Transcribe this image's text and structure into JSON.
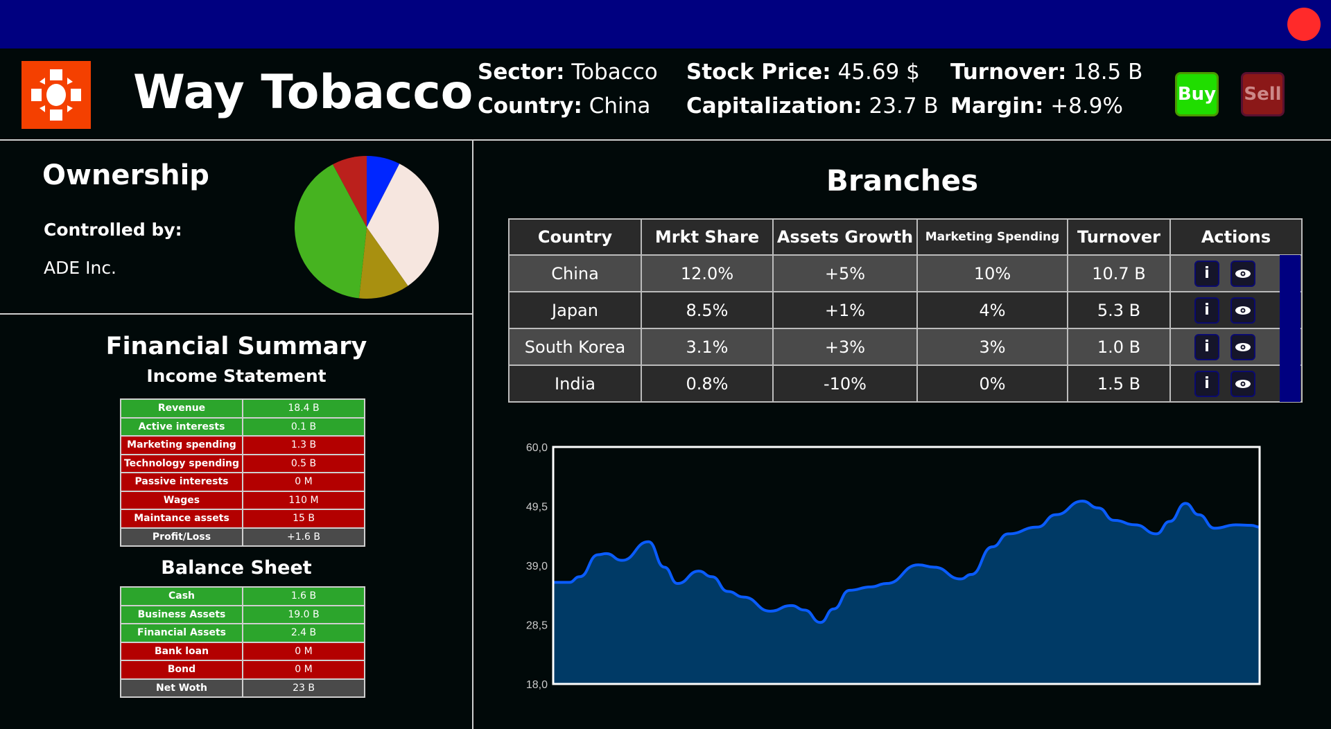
{
  "window": {
    "close_color": "#ff2a2a",
    "titlebar_color": "#000080"
  },
  "header": {
    "logo_icon": "gear-sun-icon",
    "company": "Way Tobacco",
    "stats": [
      {
        "label": "Sector:",
        "value": "Tobacco"
      },
      {
        "label": "Country:",
        "value": "China"
      },
      {
        "label": "Stock Price:",
        "value": "45.69 $"
      },
      {
        "label": "Capitalization:",
        "value": "23.7 B"
      },
      {
        "label": "Turnover:",
        "value": "18.5 B"
      },
      {
        "label": "Margin:",
        "value": "+8.9%"
      }
    ],
    "buy_label": "Buy",
    "sell_label": "Sell"
  },
  "ownership": {
    "title": "Ownership",
    "controlled_label": "Controlled by:",
    "controller": "ADE Inc.",
    "chart_data_ref": "pie"
  },
  "financial": {
    "title": "Financial Summary",
    "income_title": "Income Statement",
    "income": [
      {
        "label": "Revenue",
        "value": "18.4 B",
        "kind": "g"
      },
      {
        "label": "Active interests",
        "value": "0.1 B",
        "kind": "g"
      },
      {
        "label": "Marketing spending",
        "value": "1.3 B",
        "kind": "r"
      },
      {
        "label": "Technology spending",
        "value": "0.5 B",
        "kind": "r"
      },
      {
        "label": "Passive interests",
        "value": "0 M",
        "kind": "r"
      },
      {
        "label": "Wages",
        "value": "110 M",
        "kind": "r"
      },
      {
        "label": "Maintance assets",
        "value": "15 B",
        "kind": "r"
      },
      {
        "label": "Profit/Loss",
        "value": "+1.6 B",
        "kind": "k"
      }
    ],
    "balance_title": "Balance Sheet",
    "balance": [
      {
        "label": "Cash",
        "value": "1.6 B",
        "kind": "g"
      },
      {
        "label": "Business Assets",
        "value": "19.0 B",
        "kind": "g"
      },
      {
        "label": "Financial Assets",
        "value": "2.4 B",
        "kind": "g"
      },
      {
        "label": "Bank loan",
        "value": "0 M",
        "kind": "r"
      },
      {
        "label": "Bond",
        "value": "0 M",
        "kind": "r"
      },
      {
        "label": "Net Woth",
        "value": "23 B",
        "kind": "k"
      }
    ]
  },
  "branches": {
    "title": "Branches",
    "columns": [
      "Country",
      "Mrkt Share",
      "Assets Growth",
      "Marketing Spending",
      "Turnover",
      "Actions"
    ],
    "rows": [
      [
        "China",
        "12.0%",
        "+5%",
        "10%",
        "10.7 B"
      ],
      [
        "Japan",
        "8.5%",
        "+1%",
        "4%",
        "5.3 B"
      ],
      [
        "South Korea",
        "3.1%",
        "+3%",
        "3%",
        "1.0 B"
      ],
      [
        "India",
        "0.8%",
        "-10%",
        "0%",
        "1.5 B"
      ]
    ],
    "info_label": "i",
    "action_icons": [
      "info-icon",
      "eye-icon"
    ]
  },
  "chart_data": [
    {
      "type": "pie",
      "values": [
        7.5,
        32.8,
        11.4,
        40.5,
        7.8
      ],
      "colors": [
        "#0026ff",
        "#f6e6df",
        "#a89010",
        "#46b320",
        "#bb201c"
      ],
      "start": "top",
      "direction": "clockwise"
    },
    {
      "type": "area",
      "ylim": [
        18.0,
        60.0
      ],
      "yticks": [
        "60,0",
        "49,5",
        "39,0",
        "28,5",
        "18,0"
      ],
      "grid": false,
      "line_color": "#0a5cff",
      "fill_color": "#003a66",
      "values": [
        36.0,
        36.0,
        37.0,
        40.9,
        41.1,
        39.9,
        43.2,
        38.7,
        35.8,
        38.0,
        37.0,
        34.4,
        33.4,
        30.9,
        31.9,
        31.1,
        28.9,
        31.3,
        34.6,
        35.2,
        35.8,
        39.1,
        38.7,
        36.6,
        37.4,
        42.3,
        44.6,
        45.8,
        48.0,
        50.4,
        49.2,
        47.0,
        46.2,
        44.6,
        46.8,
        50.0,
        48.0,
        45.6,
        46.2,
        46.1,
        45.8
      ],
      "x": [
        0,
        30,
        50,
        85,
        100,
        130,
        180,
        210,
        235,
        275,
        300,
        330,
        360,
        410,
        450,
        475,
        505,
        530,
        560,
        600,
        630,
        690,
        720,
        770,
        790,
        830,
        860,
        915,
        950,
        1000,
        1030,
        1060,
        1100,
        1140,
        1165,
        1195,
        1220,
        1250,
        1290,
        1320,
        1335
      ]
    }
  ]
}
